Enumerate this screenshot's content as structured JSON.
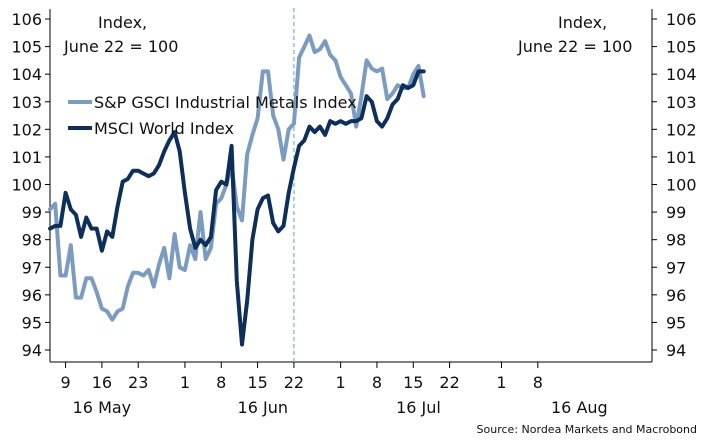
{
  "chart_data": {
    "type": "line",
    "title": "",
    "left_axis_note": [
      "Index,",
      "June 22 = 100"
    ],
    "right_axis_note": [
      "Index,",
      "June 22 = 100"
    ],
    "source": "Source: Nordea Markets and Macrobond",
    "ylim": [
      94,
      106
    ],
    "y_ticks": [
      94,
      95,
      96,
      97,
      98,
      99,
      100,
      101,
      102,
      103,
      104,
      105,
      106
    ],
    "xlim": [
      "2016-05-06",
      "2016-08-30"
    ],
    "x_ticks": [
      {
        "date": "2016-05-09",
        "label": "9"
      },
      {
        "date": "2016-05-16",
        "label": "16"
      },
      {
        "date": "2016-05-23",
        "label": "23"
      },
      {
        "date": "2016-06-01",
        "label": "1"
      },
      {
        "date": "2016-06-08",
        "label": "8"
      },
      {
        "date": "2016-06-15",
        "label": "15"
      },
      {
        "date": "2016-06-22",
        "label": "22"
      },
      {
        "date": "2016-07-01",
        "label": "1"
      },
      {
        "date": "2016-07-08",
        "label": "8"
      },
      {
        "date": "2016-07-15",
        "label": "15"
      },
      {
        "date": "2016-07-22",
        "label": "22"
      },
      {
        "date": "2016-08-01",
        "label": "1"
      },
      {
        "date": "2016-08-08",
        "label": "8"
      }
    ],
    "month_labels": [
      {
        "date": "2016-05-16",
        "label": "16 May"
      },
      {
        "date": "2016-06-16",
        "label": "16 Jun"
      },
      {
        "date": "2016-07-16",
        "label": "16 Jul"
      },
      {
        "date": "2016-08-16",
        "label": "16 Aug"
      }
    ],
    "reference_line": {
      "date": "2016-06-22",
      "color": "#8fc1e0"
    },
    "legend": "top-left",
    "grid": false,
    "series": [
      {
        "name": "S&P GSCI Industrial Metals Index",
        "color": "#7b9bc1",
        "points": [
          [
            "2016-05-06",
            99.1
          ],
          [
            "2016-05-07",
            99.3
          ],
          [
            "2016-05-08",
            96.7
          ],
          [
            "2016-05-09",
            96.7
          ],
          [
            "2016-05-10",
            97.8
          ],
          [
            "2016-05-11",
            95.9
          ],
          [
            "2016-05-12",
            95.9
          ],
          [
            "2016-05-13",
            96.6
          ],
          [
            "2016-05-14",
            96.6
          ],
          [
            "2016-05-15",
            96.1
          ],
          [
            "2016-05-16",
            95.5
          ],
          [
            "2016-05-17",
            95.4
          ],
          [
            "2016-05-18",
            95.1
          ],
          [
            "2016-05-19",
            95.4
          ],
          [
            "2016-05-20",
            95.5
          ],
          [
            "2016-05-21",
            96.3
          ],
          [
            "2016-05-22",
            96.8
          ],
          [
            "2016-05-23",
            96.8
          ],
          [
            "2016-05-24",
            96.7
          ],
          [
            "2016-05-25",
            96.9
          ],
          [
            "2016-05-26",
            96.3
          ],
          [
            "2016-05-27",
            97.1
          ],
          [
            "2016-05-28",
            97.7
          ],
          [
            "2016-05-29",
            96.6
          ],
          [
            "2016-05-30",
            98.2
          ],
          [
            "2016-05-31",
            97.0
          ],
          [
            "2016-06-01",
            96.9
          ],
          [
            "2016-06-02",
            97.8
          ],
          [
            "2016-06-03",
            97.3
          ],
          [
            "2016-06-04",
            99.0
          ],
          [
            "2016-06-05",
            97.3
          ],
          [
            "2016-06-06",
            97.7
          ],
          [
            "2016-06-07",
            99.3
          ],
          [
            "2016-06-08",
            99.5
          ],
          [
            "2016-06-09",
            100.0
          ],
          [
            "2016-06-10",
            100.7
          ],
          [
            "2016-06-11",
            99.2
          ],
          [
            "2016-06-12",
            98.7
          ],
          [
            "2016-06-13",
            101.1
          ],
          [
            "2016-06-14",
            101.8
          ],
          [
            "2016-06-15",
            102.4
          ],
          [
            "2016-06-16",
            104.1
          ],
          [
            "2016-06-17",
            104.1
          ],
          [
            "2016-06-18",
            102.5
          ],
          [
            "2016-06-19",
            102.0
          ],
          [
            "2016-06-20",
            100.9
          ],
          [
            "2016-06-21",
            102.0
          ],
          [
            "2016-06-22",
            102.2
          ],
          [
            "2016-06-23",
            104.6
          ],
          [
            "2016-06-24",
            105.0
          ],
          [
            "2016-06-25",
            105.4
          ],
          [
            "2016-06-26",
            104.8
          ],
          [
            "2016-06-27",
            104.9
          ],
          [
            "2016-06-28",
            105.2
          ],
          [
            "2016-06-29",
            104.7
          ],
          [
            "2016-06-30",
            104.5
          ],
          [
            "2016-07-01",
            103.9
          ],
          [
            "2016-07-02",
            103.6
          ],
          [
            "2016-07-03",
            103.3
          ],
          [
            "2016-07-04",
            102.1
          ],
          [
            "2016-07-05",
            103.2
          ],
          [
            "2016-07-06",
            104.5
          ],
          [
            "2016-07-07",
            104.2
          ],
          [
            "2016-07-08",
            104.1
          ],
          [
            "2016-07-09",
            104.2
          ],
          [
            "2016-07-10",
            103.1
          ],
          [
            "2016-07-11",
            103.3
          ],
          [
            "2016-07-12",
            103.6
          ],
          [
            "2016-07-13",
            103.5
          ],
          [
            "2016-07-14",
            103.5
          ],
          [
            "2016-07-15",
            104.0
          ],
          [
            "2016-07-16",
            104.3
          ],
          [
            "2016-07-17",
            103.2
          ]
        ]
      },
      {
        "name": "MSCI World Index",
        "color": "#0e2f5a",
        "points": [
          [
            "2016-05-06",
            98.4
          ],
          [
            "2016-05-07",
            98.5
          ],
          [
            "2016-05-08",
            98.5
          ],
          [
            "2016-05-09",
            99.7
          ],
          [
            "2016-05-10",
            99.1
          ],
          [
            "2016-05-11",
            98.9
          ],
          [
            "2016-05-12",
            98.1
          ],
          [
            "2016-05-13",
            98.8
          ],
          [
            "2016-05-14",
            98.4
          ],
          [
            "2016-05-15",
            98.4
          ],
          [
            "2016-05-16",
            97.6
          ],
          [
            "2016-05-17",
            98.3
          ],
          [
            "2016-05-18",
            98.1
          ],
          [
            "2016-05-19",
            99.2
          ],
          [
            "2016-05-20",
            100.1
          ],
          [
            "2016-05-21",
            100.2
          ],
          [
            "2016-05-22",
            100.5
          ],
          [
            "2016-05-23",
            100.5
          ],
          [
            "2016-05-24",
            100.4
          ],
          [
            "2016-05-25",
            100.3
          ],
          [
            "2016-05-26",
            100.4
          ],
          [
            "2016-05-27",
            100.7
          ],
          [
            "2016-05-28",
            101.2
          ],
          [
            "2016-05-29",
            101.6
          ],
          [
            "2016-05-30",
            101.9
          ],
          [
            "2016-05-31",
            101.2
          ],
          [
            "2016-06-01",
            99.7
          ],
          [
            "2016-06-02",
            98.4
          ],
          [
            "2016-06-03",
            97.7
          ],
          [
            "2016-06-04",
            98.0
          ],
          [
            "2016-06-05",
            97.8
          ],
          [
            "2016-06-06",
            98.1
          ],
          [
            "2016-06-07",
            99.8
          ],
          [
            "2016-06-08",
            100.1
          ],
          [
            "2016-06-09",
            100.0
          ],
          [
            "2016-06-10",
            101.4
          ],
          [
            "2016-06-11",
            96.5
          ],
          [
            "2016-06-12",
            94.2
          ],
          [
            "2016-06-13",
            95.8
          ],
          [
            "2016-06-14",
            98.0
          ],
          [
            "2016-06-15",
            99.1
          ],
          [
            "2016-06-16",
            99.5
          ],
          [
            "2016-06-17",
            99.6
          ],
          [
            "2016-06-18",
            98.6
          ],
          [
            "2016-06-19",
            98.3
          ],
          [
            "2016-06-20",
            98.5
          ],
          [
            "2016-06-21",
            99.7
          ],
          [
            "2016-06-22",
            100.6
          ],
          [
            "2016-06-23",
            101.4
          ],
          [
            "2016-06-24",
            101.6
          ],
          [
            "2016-06-25",
            102.1
          ],
          [
            "2016-06-26",
            101.9
          ],
          [
            "2016-06-27",
            102.1
          ],
          [
            "2016-06-28",
            101.8
          ],
          [
            "2016-06-29",
            102.3
          ],
          [
            "2016-06-30",
            102.2
          ],
          [
            "2016-07-01",
            102.3
          ],
          [
            "2016-07-02",
            102.2
          ],
          [
            "2016-07-03",
            102.3
          ],
          [
            "2016-07-04",
            102.3
          ],
          [
            "2016-07-05",
            102.4
          ],
          [
            "2016-07-06",
            103.2
          ],
          [
            "2016-07-07",
            103.0
          ],
          [
            "2016-07-08",
            102.3
          ],
          [
            "2016-07-09",
            102.1
          ],
          [
            "2016-07-10",
            102.4
          ],
          [
            "2016-07-11",
            102.9
          ],
          [
            "2016-07-12",
            103.1
          ],
          [
            "2016-07-13",
            103.6
          ],
          [
            "2016-07-14",
            103.5
          ],
          [
            "2016-07-15",
            103.6
          ],
          [
            "2016-07-16",
            104.1
          ],
          [
            "2016-07-17",
            104.1
          ]
        ]
      }
    ]
  }
}
